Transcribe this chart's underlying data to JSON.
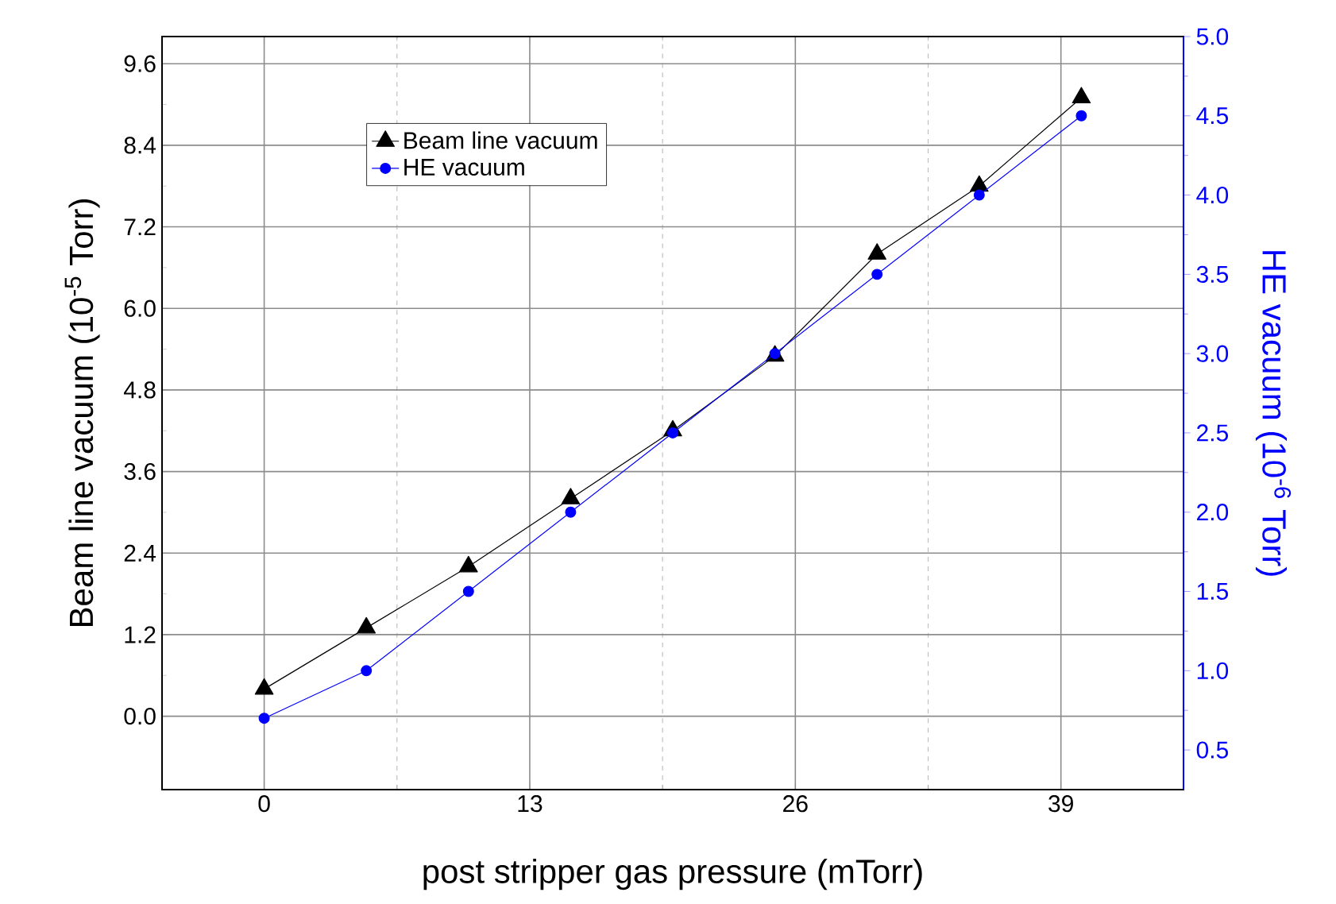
{
  "chart_data": {
    "type": "line",
    "xlabel": "post stripper gas pressure (mTorr)",
    "ylabel": "Beam line vacuum (10$^{-5}$ Torr)",
    "y2label": "HE vacuum (10$^{-6}$ Torr)",
    "x": [
      0,
      5,
      10,
      15,
      20,
      25,
      30,
      35,
      40
    ],
    "series": [
      {
        "name": "Beam line vacuum",
        "color": "#000000",
        "marker": "triangle",
        "axis": "y",
        "values": [
          0.4,
          1.3,
          2.2,
          3.2,
          4.2,
          5.3,
          6.8,
          7.8,
          9.1
        ]
      },
      {
        "name": "HE vacuum",
        "color": "#0000ff",
        "marker": "circle",
        "axis": "y2",
        "values": [
          0.7,
          1.0,
          1.5,
          2.0,
          2.5,
          3.0,
          3.5,
          4.0,
          4.5
        ]
      }
    ],
    "xlim": [
      -5,
      45
    ],
    "xticks": [
      0,
      13,
      26,
      39
    ],
    "ylim": [
      -1.08,
      10.0
    ],
    "yticks": [
      {
        "value": 0,
        "label": "0.0"
      },
      1.2,
      2.4,
      3.6,
      4.8,
      {
        "value": 6,
        "label": "6.0"
      },
      7.2,
      8.4,
      9.6
    ],
    "y2lim": [
      0.25,
      5.0
    ],
    "y2ticks": [
      0.5,
      {
        "value": 1,
        "label": "1.0"
      },
      1.5,
      {
        "value": 2,
        "label": "2.0"
      },
      2.5,
      {
        "value": 3,
        "label": "3.0"
      },
      3.5,
      {
        "value": 4,
        "label": "4.0"
      },
      4.5,
      {
        "value": 5,
        "label": "5.0"
      }
    ],
    "grid": true,
    "legend": "top left",
    "line_style": "solid"
  }
}
